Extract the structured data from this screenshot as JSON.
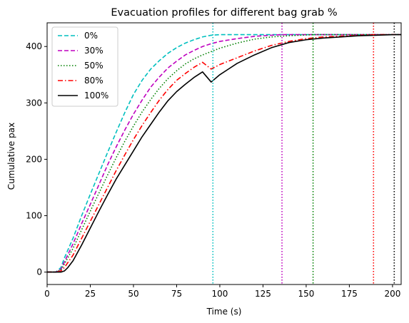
{
  "chart_data": {
    "type": "line",
    "title": "Evacuation profiles for different bag grab %",
    "xlabel": "Time (s)",
    "ylabel": "Cumulative pax",
    "xlim": [
      0,
      205
    ],
    "ylim": [
      -22,
      442
    ],
    "xticks": [
      0,
      25,
      50,
      75,
      100,
      125,
      150,
      175,
      200
    ],
    "yticks": [
      0,
      100,
      200,
      300,
      400
    ],
    "grid": false,
    "legend_position": "top-left",
    "series": [
      {
        "name": "0%",
        "color": "#00bfbf",
        "dash": "dashed",
        "end_time": 96,
        "points": [
          [
            0,
            0
          ],
          [
            5,
            0
          ],
          [
            8,
            8
          ],
          [
            10,
            25
          ],
          [
            15,
            60
          ],
          [
            20,
            100
          ],
          [
            25,
            138
          ],
          [
            30,
            175
          ],
          [
            35,
            212
          ],
          [
            40,
            248
          ],
          [
            45,
            283
          ],
          [
            50,
            315
          ],
          [
            55,
            340
          ],
          [
            60,
            360
          ],
          [
            65,
            375
          ],
          [
            70,
            388
          ],
          [
            75,
            398
          ],
          [
            80,
            406
          ],
          [
            85,
            412
          ],
          [
            90,
            417
          ],
          [
            95,
            420
          ],
          [
            100,
            421
          ],
          [
            205,
            421
          ]
        ]
      },
      {
        "name": "30%",
        "color": "#bf00bf",
        "dash": "dashed",
        "end_time": 136,
        "points": [
          [
            0,
            0
          ],
          [
            5,
            0
          ],
          [
            8,
            5
          ],
          [
            10,
            18
          ],
          [
            15,
            50
          ],
          [
            20,
            86
          ],
          [
            25,
            120
          ],
          [
            30,
            155
          ],
          [
            35,
            190
          ],
          [
            40,
            222
          ],
          [
            45,
            252
          ],
          [
            50,
            280
          ],
          [
            55,
            305
          ],
          [
            60,
            328
          ],
          [
            65,
            346
          ],
          [
            70,
            362
          ],
          [
            75,
            374
          ],
          [
            80,
            385
          ],
          [
            85,
            393
          ],
          [
            90,
            400
          ],
          [
            95,
            405
          ],
          [
            100,
            409
          ],
          [
            110,
            414
          ],
          [
            120,
            418
          ],
          [
            130,
            420
          ],
          [
            136,
            421
          ],
          [
            205,
            421
          ]
        ]
      },
      {
        "name": "50%",
        "color": "#008000",
        "dash": "dotted",
        "end_time": 154,
        "points": [
          [
            0,
            0
          ],
          [
            5,
            0
          ],
          [
            8,
            4
          ],
          [
            10,
            14
          ],
          [
            15,
            42
          ],
          [
            20,
            75
          ],
          [
            25,
            108
          ],
          [
            30,
            140
          ],
          [
            35,
            172
          ],
          [
            40,
            203
          ],
          [
            45,
            232
          ],
          [
            50,
            259
          ],
          [
            55,
            284
          ],
          [
            60,
            306
          ],
          [
            65,
            326
          ],
          [
            70,
            343
          ],
          [
            75,
            357
          ],
          [
            80,
            369
          ],
          [
            85,
            378
          ],
          [
            90,
            385
          ],
          [
            95,
            391
          ],
          [
            100,
            397
          ],
          [
            110,
            406
          ],
          [
            120,
            413
          ],
          [
            130,
            417
          ],
          [
            140,
            419
          ],
          [
            154,
            421
          ],
          [
            205,
            421
          ]
        ]
      },
      {
        "name": "80%",
        "color": "#ff0000",
        "dash": "dashdot",
        "end_time": 189,
        "points": [
          [
            0,
            0
          ],
          [
            5,
            0
          ],
          [
            8,
            2
          ],
          [
            10,
            8
          ],
          [
            15,
            30
          ],
          [
            20,
            60
          ],
          [
            25,
            90
          ],
          [
            30,
            120
          ],
          [
            35,
            150
          ],
          [
            40,
            180
          ],
          [
            45,
            208
          ],
          [
            50,
            235
          ],
          [
            55,
            260
          ],
          [
            60,
            283
          ],
          [
            65,
            305
          ],
          [
            70,
            324
          ],
          [
            75,
            340
          ],
          [
            80,
            352
          ],
          [
            85,
            363
          ],
          [
            90,
            372
          ],
          [
            95,
            360
          ],
          [
            100,
            368
          ],
          [
            110,
            380
          ],
          [
            120,
            392
          ],
          [
            130,
            402
          ],
          [
            140,
            409
          ],
          [
            150,
            414
          ],
          [
            160,
            417
          ],
          [
            175,
            419
          ],
          [
            189,
            421
          ],
          [
            205,
            421
          ]
        ]
      },
      {
        "name": "100%",
        "color": "#000000",
        "dash": "solid",
        "end_time": 201,
        "points": [
          [
            0,
            0
          ],
          [
            5,
            0
          ],
          [
            8,
            0
          ],
          [
            10,
            2
          ],
          [
            12,
            8
          ],
          [
            15,
            20
          ],
          [
            20,
            48
          ],
          [
            25,
            78
          ],
          [
            30,
            108
          ],
          [
            35,
            137
          ],
          [
            40,
            165
          ],
          [
            45,
            190
          ],
          [
            50,
            215
          ],
          [
            55,
            240
          ],
          [
            60,
            262
          ],
          [
            65,
            284
          ],
          [
            70,
            304
          ],
          [
            75,
            320
          ],
          [
            80,
            333
          ],
          [
            85,
            345
          ],
          [
            90,
            355
          ],
          [
            95,
            337
          ],
          [
            100,
            350
          ],
          [
            105,
            360
          ],
          [
            110,
            370
          ],
          [
            120,
            385
          ],
          [
            130,
            398
          ],
          [
            140,
            407
          ],
          [
            150,
            412
          ],
          [
            160,
            415
          ],
          [
            170,
            417
          ],
          [
            180,
            419
          ],
          [
            190,
            420
          ],
          [
            201,
            421
          ],
          [
            205,
            421
          ]
        ]
      }
    ]
  }
}
